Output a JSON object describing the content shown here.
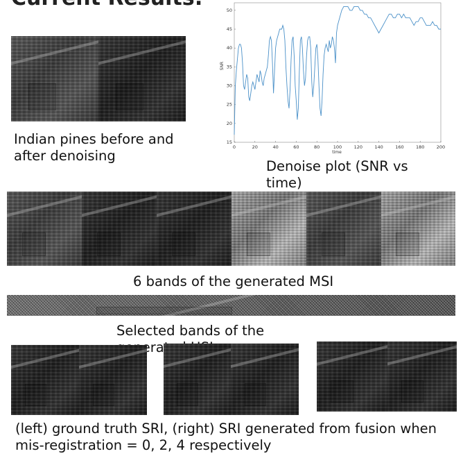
{
  "heading": "Current Results:",
  "captions": {
    "indian_pines": "Indian pines before and after denoising",
    "denoise_plot": "Denoise plot (SNR vs time)",
    "msi_bands": "6 bands of the generated MSI",
    "hsi_bands": "Selected bands of the generated HSI",
    "fusion": "(left) ground truth SRI, (right) SRI generated from fusion when mis-registration = 0, 2, 4 respectively"
  },
  "chart_data": {
    "type": "line",
    "xlabel": "time",
    "ylabel": "SNR",
    "xlim": [
      0,
      200
    ],
    "ylim": [
      15,
      52
    ],
    "xticks": [
      0,
      20,
      40,
      60,
      80,
      100,
      120,
      140,
      160,
      180,
      200
    ],
    "yticks": [
      15,
      20,
      25,
      30,
      35,
      40,
      45,
      50
    ],
    "line_color": "#4a90c8",
    "x": [
      0,
      1,
      2,
      3,
      4,
      5,
      6,
      7,
      8,
      9,
      10,
      11,
      12,
      13,
      14,
      15,
      16,
      17,
      18,
      19,
      20,
      21,
      22,
      23,
      24,
      25,
      26,
      27,
      28,
      29,
      30,
      31,
      32,
      33,
      34,
      35,
      36,
      37,
      38,
      39,
      40,
      41,
      42,
      43,
      44,
      45,
      46,
      47,
      48,
      49,
      50,
      51,
      52,
      53,
      54,
      55,
      56,
      57,
      58,
      59,
      60,
      61,
      62,
      63,
      64,
      65,
      66,
      67,
      68,
      69,
      70,
      71,
      72,
      73,
      74,
      75,
      76,
      77,
      78,
      79,
      80,
      81,
      82,
      83,
      84,
      85,
      86,
      87,
      88,
      89,
      90,
      91,
      92,
      93,
      94,
      95,
      96,
      97,
      98,
      99,
      100,
      102,
      104,
      106,
      108,
      110,
      112,
      114,
      116,
      118,
      120,
      122,
      124,
      126,
      128,
      130,
      132,
      134,
      136,
      138,
      140,
      142,
      144,
      146,
      148,
      150,
      152,
      154,
      156,
      158,
      160,
      162,
      164,
      166,
      168,
      170,
      172,
      174,
      176,
      178,
      180,
      182,
      184,
      186,
      188,
      190,
      192,
      194,
      196,
      198,
      200
    ],
    "y": [
      17,
      30,
      34,
      37,
      40,
      41,
      41,
      40,
      36,
      30,
      29,
      31,
      33,
      32,
      27,
      26,
      28,
      30,
      31,
      30,
      29,
      31,
      33,
      32,
      31,
      34,
      33,
      31,
      30,
      32,
      33,
      34,
      35,
      38,
      42,
      43,
      42,
      36,
      28,
      34,
      40,
      42,
      43,
      44,
      45,
      45,
      45,
      46,
      45,
      42,
      35,
      30,
      26,
      24,
      29,
      37,
      42,
      43,
      38,
      30,
      26,
      21,
      24,
      34,
      42,
      43,
      40,
      34,
      30,
      32,
      38,
      42,
      43,
      43,
      40,
      31,
      27,
      30,
      35,
      40,
      41,
      37,
      30,
      24,
      22,
      26,
      33,
      38,
      40,
      41,
      40,
      39,
      42,
      40,
      41,
      43,
      42,
      40,
      36,
      44,
      46,
      48,
      50,
      51,
      51,
      51,
      50,
      50,
      51,
      51,
      51,
      50,
      50,
      49,
      49,
      48,
      48,
      47,
      46,
      45,
      44,
      45,
      46,
      47,
      48,
      49,
      49,
      48,
      48,
      49,
      49,
      48,
      49,
      48,
      48,
      48,
      47,
      46,
      47,
      47,
      48,
      48,
      47,
      46,
      46,
      46,
      47,
      46,
      46,
      45,
      45
    ]
  }
}
